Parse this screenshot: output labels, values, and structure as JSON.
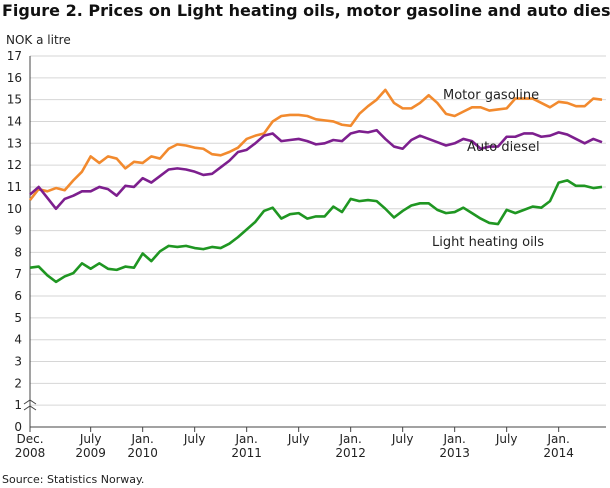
{
  "chart_data": {
    "type": "line",
    "title": "Figure 2. Prices on Light heating oils, motor gasoline and auto diesel",
    "y_label": "NOK a litre",
    "source": "Source: Statistics Norway.",
    "x": [
      "2008-12",
      "2009-01",
      "2009-02",
      "2009-03",
      "2009-04",
      "2009-05",
      "2009-06",
      "2009-07",
      "2009-08",
      "2009-09",
      "2009-10",
      "2009-11",
      "2009-12",
      "2010-01",
      "2010-02",
      "2010-03",
      "2010-04",
      "2010-05",
      "2010-06",
      "2010-07",
      "2010-08",
      "2010-09",
      "2010-10",
      "2010-11",
      "2010-12",
      "2011-01",
      "2011-02",
      "2011-03",
      "2011-04",
      "2011-05",
      "2011-06",
      "2011-07",
      "2011-08",
      "2011-09",
      "2011-10",
      "2011-11",
      "2011-12",
      "2012-01",
      "2012-02",
      "2012-03",
      "2012-04",
      "2012-05",
      "2012-06",
      "2012-07",
      "2012-08",
      "2012-09",
      "2012-10",
      "2012-11",
      "2012-12",
      "2013-01",
      "2013-02",
      "2013-03",
      "2013-04",
      "2013-05",
      "2013-06",
      "2013-07",
      "2013-08",
      "2013-09",
      "2013-10",
      "2013-11",
      "2013-12",
      "2014-01",
      "2014-02",
      "2014-03",
      "2014-04",
      "2014-05",
      "2014-06"
    ],
    "xticks": [
      {
        "value": "2008-12",
        "label": [
          "Dec.",
          "2008"
        ]
      },
      {
        "value": "2009-07",
        "label": [
          "July",
          "2009"
        ]
      },
      {
        "value": "2010-01",
        "label": [
          "Jan.",
          "2010"
        ]
      },
      {
        "value": "2010-07",
        "label": [
          "July"
        ]
      },
      {
        "value": "2011-01",
        "label": [
          "Jan.",
          "2011"
        ]
      },
      {
        "value": "2011-07",
        "label": [
          "July"
        ]
      },
      {
        "value": "2012-01",
        "label": [
          "Jan.",
          "2012"
        ]
      },
      {
        "value": "2012-07",
        "label": [
          "July"
        ]
      },
      {
        "value": "2013-01",
        "label": [
          "Jan.",
          "2013"
        ]
      },
      {
        "value": "2013-07",
        "label": [
          "July"
        ]
      },
      {
        "value": "2014-01",
        "label": [
          "Jan.",
          "2014"
        ]
      }
    ],
    "ylim": [
      0,
      17
    ],
    "yticks": [
      0,
      1,
      2,
      3,
      4,
      5,
      6,
      7,
      8,
      9,
      10,
      11,
      12,
      13,
      14,
      15,
      16,
      17
    ],
    "grid": true,
    "series": [
      {
        "name": "Motor gasoline",
        "color": "#f28a2e",
        "values": [
          10.4,
          10.9,
          10.8,
          10.95,
          10.85,
          11.3,
          11.7,
          12.4,
          12.1,
          12.4,
          12.3,
          11.85,
          12.15,
          12.1,
          12.4,
          12.3,
          12.75,
          12.95,
          12.9,
          12.8,
          12.75,
          12.5,
          12.45,
          12.6,
          12.8,
          13.2,
          13.35,
          13.45,
          14.0,
          14.25,
          14.3,
          14.3,
          14.25,
          14.1,
          14.05,
          14.0,
          13.85,
          13.8,
          14.35,
          14.7,
          15.0,
          15.45,
          14.85,
          14.6,
          14.6,
          14.85,
          15.2,
          14.85,
          14.35,
          14.25,
          14.45,
          14.65,
          14.65,
          14.5,
          14.55,
          14.6,
          15.05,
          15.05,
          15.05,
          14.85,
          14.65,
          14.9,
          14.85,
          14.7,
          14.7,
          15.05,
          15.0
        ]
      },
      {
        "name": "Auto diesel",
        "color": "#7d1f8e",
        "values": [
          10.65,
          11.0,
          10.5,
          10.0,
          10.45,
          10.6,
          10.8,
          10.8,
          11.0,
          10.9,
          10.6,
          11.05,
          11.0,
          11.4,
          11.2,
          11.5,
          11.8,
          11.85,
          11.8,
          11.7,
          11.55,
          11.6,
          11.9,
          12.2,
          12.6,
          12.7,
          13.0,
          13.35,
          13.45,
          13.1,
          13.15,
          13.2,
          13.1,
          12.95,
          13.0,
          13.15,
          13.1,
          13.45,
          13.55,
          13.5,
          13.6,
          13.2,
          12.85,
          12.75,
          13.15,
          13.35,
          13.2,
          13.05,
          12.9,
          13.0,
          13.2,
          13.1,
          12.75,
          12.85,
          12.85,
          13.3,
          13.3,
          13.45,
          13.45,
          13.3,
          13.35,
          13.5,
          13.4,
          13.2,
          13.0,
          13.2,
          13.05
        ]
      },
      {
        "name": "Light heating oils",
        "color": "#1f9622",
        "values": [
          7.3,
          7.35,
          6.95,
          6.65,
          6.9,
          7.05,
          7.5,
          7.25,
          7.5,
          7.25,
          7.2,
          7.35,
          7.3,
          7.95,
          7.6,
          8.05,
          8.3,
          8.25,
          8.3,
          8.2,
          8.15,
          8.25,
          8.2,
          8.4,
          8.7,
          9.05,
          9.4,
          9.9,
          10.05,
          9.55,
          9.75,
          9.8,
          9.55,
          9.65,
          9.65,
          10.1,
          9.85,
          10.45,
          10.35,
          10.4,
          10.35,
          10.0,
          9.6,
          9.9,
          10.15,
          10.25,
          10.25,
          9.95,
          9.8,
          9.85,
          10.05,
          9.8,
          9.55,
          9.35,
          9.3,
          9.95,
          9.8,
          9.95,
          10.1,
          10.05,
          10.35,
          11.2,
          11.3,
          11.05,
          11.05,
          10.95,
          11.0
        ]
      }
    ]
  }
}
